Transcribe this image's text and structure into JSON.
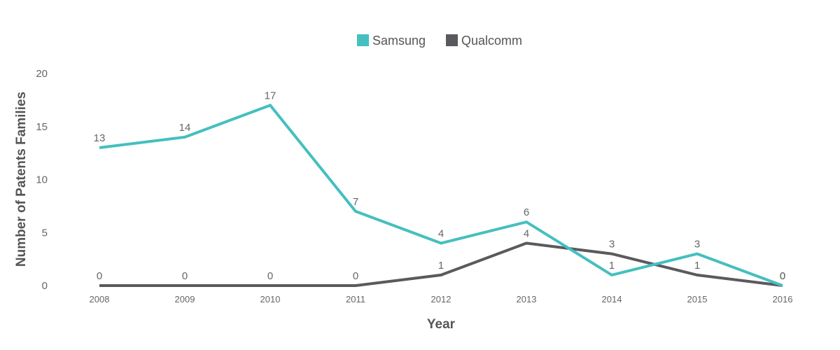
{
  "chart_data": {
    "type": "line",
    "x": [
      "2008",
      "2009",
      "2010",
      "2011",
      "2012",
      "2013",
      "2014",
      "2015",
      "2016"
    ],
    "series": [
      {
        "name": "Samsung",
        "color": "#45bfbf",
        "values": [
          13,
          14,
          17,
          7,
          4,
          6,
          1,
          3,
          0
        ]
      },
      {
        "name": "Qualcomm",
        "color": "#5a5a5e",
        "values": [
          0,
          0,
          0,
          0,
          1,
          4,
          3,
          1,
          0
        ]
      }
    ],
    "xlabel": "Year",
    "ylabel": "Number of Patents Families",
    "ylim": [
      0,
      20
    ],
    "yticks": [
      "0",
      "5",
      "10",
      "15",
      "20"
    ],
    "grid": false,
    "legend_position": "top-center",
    "data_labels": true
  }
}
